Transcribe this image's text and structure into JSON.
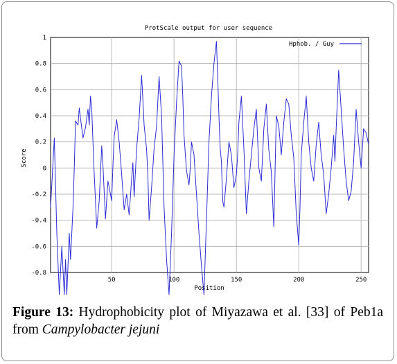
{
  "chart_data": {
    "type": "line",
    "title": "ProtScale output for user sequence",
    "xlabel": "Position",
    "ylabel": "Score",
    "xlim": [
      1,
      256
    ],
    "ylim": [
      -0.8,
      1.0
    ],
    "x_ticks": [
      50,
      100,
      150,
      200,
      250
    ],
    "y_ticks": [
      -0.8,
      -0.6,
      -0.4,
      -0.2,
      0,
      0.2,
      0.4,
      0.6,
      0.8,
      1
    ],
    "y_tick_labels": [
      "-0.8",
      "-0.6",
      "-0.4",
      "-0.2",
      "0",
      "0.2",
      "0.4",
      "0.6",
      "0.8",
      "1"
    ],
    "grid": true,
    "legend_position": "top-right",
    "series": [
      {
        "name": "Hphob. / Guy",
        "color": "#2b2bd6",
        "x": [
          1,
          4,
          6,
          8,
          10,
          12,
          13,
          14,
          16,
          17,
          18,
          19,
          20,
          21,
          23,
          24,
          25,
          27,
          29,
          31,
          32,
          33,
          34,
          35,
          36,
          37,
          38,
          40,
          42,
          43,
          45,
          47,
          48,
          50,
          51,
          52,
          54,
          56,
          58,
          60,
          62,
          64,
          66,
          67,
          68,
          70,
          72,
          74,
          76,
          78,
          79,
          80,
          82,
          84,
          86,
          88,
          90,
          91,
          92,
          94,
          96,
          98,
          100,
          102,
          104,
          106,
          107,
          108,
          110,
          112,
          113,
          114,
          116,
          118,
          120,
          122,
          124,
          126,
          128,
          130,
          132,
          134,
          135,
          136,
          137,
          138,
          139,
          140,
          142,
          144,
          146,
          148,
          150,
          151,
          152,
          154,
          156,
          158,
          160,
          162,
          164,
          166,
          168,
          170,
          172,
          174,
          176,
          178,
          180,
          182,
          184,
          186,
          188,
          190,
          192,
          194,
          196,
          198,
          200,
          201,
          202,
          204,
          206,
          208,
          210,
          212,
          214,
          216,
          218,
          220,
          222,
          224,
          226,
          228,
          229,
          230,
          232,
          234,
          236,
          238,
          240,
          242,
          244,
          246,
          248,
          250,
          252,
          254,
          256
        ],
        "values": [
          -0.3,
          0.23,
          -0.5,
          -0.97,
          -0.6,
          -0.97,
          -0.7,
          -0.97,
          -0.5,
          -0.7,
          -0.5,
          -0.3,
          0.0,
          0.36,
          0.33,
          0.46,
          0.38,
          0.23,
          0.31,
          0.45,
          0.33,
          0.55,
          0.45,
          0.2,
          -0.05,
          -0.25,
          -0.46,
          -0.25,
          0.17,
          0.02,
          -0.39,
          -0.1,
          -0.15,
          -0.25,
          0.02,
          0.24,
          0.37,
          0.2,
          -0.05,
          -0.32,
          -0.2,
          -0.36,
          -0.08,
          0.04,
          -0.22,
          0.15,
          0.38,
          0.71,
          0.33,
          0.14,
          -0.05,
          -0.4,
          -0.15,
          0.15,
          0.32,
          0.7,
          0.4,
          0.05,
          -0.3,
          -0.7,
          -0.97,
          -0.5,
          0.1,
          0.5,
          0.82,
          0.78,
          0.55,
          0.25,
          -0.02,
          -0.13,
          0.0,
          0.2,
          0.1,
          -0.2,
          -0.5,
          -0.75,
          -0.97,
          -0.4,
          0.2,
          0.55,
          0.8,
          0.97,
          0.7,
          0.4,
          0.15,
          0.05,
          -0.25,
          -0.3,
          -0.08,
          0.2,
          0.1,
          -0.15,
          -0.05,
          0.1,
          0.35,
          0.55,
          0.15,
          -0.35,
          -0.1,
          0.1,
          0.3,
          0.45,
          0.0,
          -0.1,
          0.3,
          0.49,
          0.14,
          -0.03,
          -0.45,
          0.4,
          0.32,
          0.1,
          0.35,
          0.53,
          0.49,
          0.25,
          0.08,
          -0.35,
          -0.59,
          -0.3,
          0.1,
          0.35,
          0.55,
          0.2,
          0.0,
          -0.1,
          0.18,
          0.35,
          0.1,
          -0.05,
          -0.35,
          -0.2,
          0.0,
          0.25,
          0.05,
          0.3,
          0.75,
          0.45,
          0.15,
          -0.1,
          -0.25,
          -0.18,
          0.05,
          0.45,
          0.2,
          0.0,
          0.3,
          0.27,
          0.18
        ]
      }
    ]
  },
  "caption": {
    "label": "Figure 13:",
    "text_before_org": " Hydrophobicity plot of Miyazawa et al. [33] of Peb1a from ",
    "organism": "Campylobacter jejuni"
  }
}
